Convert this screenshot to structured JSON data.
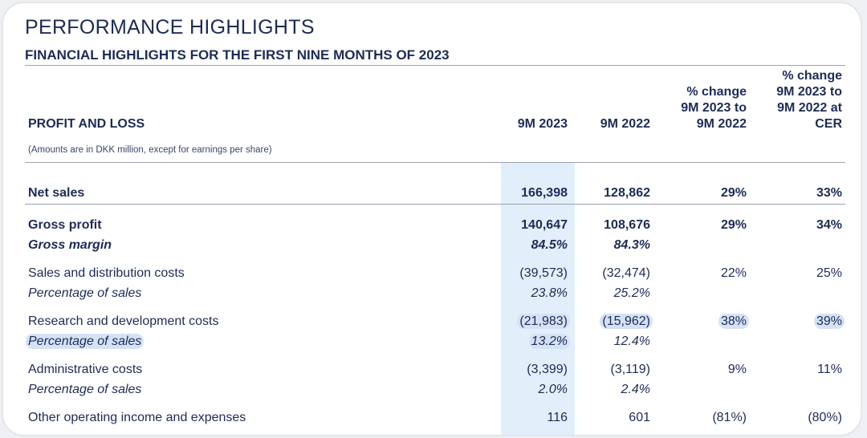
{
  "header": {
    "title": "PERFORMANCE HIGHLIGHTS",
    "subtitle": "FINANCIAL HIGHLIGHTS FOR THE FIRST NINE MONTHS OF 2023"
  },
  "table": {
    "section_label": "PROFIT AND LOSS",
    "note": "(Amounts are in DKK million, except for earnings per share)",
    "columns": [
      "9M 2023",
      "9M 2022",
      "% change\n9M 2023 to\n9M 2022",
      "% change\n9M 2023 to\n9M 2022 at\nCER"
    ],
    "rows": {
      "net_sales": {
        "label": "Net sales",
        "v2023": "166,398",
        "v2022": "128,862",
        "chg": "29%",
        "chg_cer": "33%"
      },
      "gross_profit": {
        "label": "Gross profit",
        "v2023": "140,647",
        "v2022": "108,676",
        "chg": "29%",
        "chg_cer": "34%"
      },
      "gross_margin": {
        "label": "Gross margin",
        "v2023": "84.5%",
        "v2022": "84.3%"
      },
      "sales_dist": {
        "label": "Sales and distribution costs",
        "v2023": "(39,573)",
        "v2022": "(32,474)",
        "chg": "22%",
        "chg_cer": "25%"
      },
      "sales_dist_pct": {
        "label": "Percentage of sales",
        "v2023": "23.8%",
        "v2022": "25.2%"
      },
      "rnd": {
        "label": "Research and development costs",
        "v2023": "(21,983)",
        "v2022": "(15,962)",
        "chg": "38%",
        "chg_cer": "39%"
      },
      "rnd_pct": {
        "label": "Percentage of sales",
        "v2023": "13.2%",
        "v2022": "12.4%"
      },
      "admin": {
        "label": "Administrative costs",
        "v2023": "(3,399)",
        "v2022": "(3,119)",
        "chg": "9%",
        "chg_cer": "11%"
      },
      "admin_pct": {
        "label": "Percentage of sales",
        "v2023": "2.0%",
        "v2022": "2.4%"
      },
      "other": {
        "label": "Other operating income and expenses",
        "v2023": "116",
        "v2022": "601",
        "chg": "(81%)",
        "chg_cer": "(80%)"
      }
    }
  }
}
